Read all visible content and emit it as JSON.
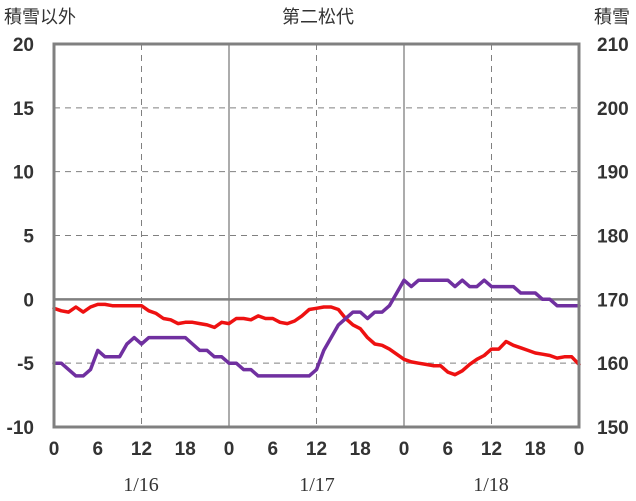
{
  "chart_data": {
    "type": "line",
    "title": "第二松代",
    "ylabel_left": "積雪以外",
    "ylabel_right": "積雪",
    "ylim_left": [
      -10,
      20
    ],
    "ylim_right": [
      150,
      210
    ],
    "yticks_left": [
      "20",
      "15",
      "10",
      "5",
      "0",
      "-5",
      "-10"
    ],
    "yticks_right": [
      "210",
      "200",
      "190",
      "180",
      "170",
      "160",
      "150"
    ],
    "xticks": [
      "0",
      "6",
      "12",
      "18",
      "0",
      "6",
      "12",
      "18",
      "0",
      "6",
      "12",
      "18",
      "0"
    ],
    "date_labels": [
      "1/16",
      "1/17",
      "1/18"
    ],
    "xlim_hours": [
      0,
      72
    ],
    "grid": true,
    "colors": {
      "red": "#ee1111",
      "purple": "#7030a0",
      "frame": "#808080",
      "grid": "#808080"
    },
    "series": [
      {
        "axis": "left",
        "color": "#ee1111",
        "x": [
          0,
          1,
          2,
          3,
          4,
          5,
          6,
          7,
          8,
          9,
          10,
          11,
          12,
          13,
          14,
          15,
          16,
          17,
          18,
          19,
          20,
          21,
          22,
          23,
          24,
          25,
          26,
          27,
          28,
          29,
          30,
          31,
          32,
          33,
          34,
          35,
          36,
          37,
          38,
          39,
          40,
          41,
          42,
          43,
          44,
          45,
          46,
          47,
          48,
          49,
          50,
          51,
          52,
          53,
          54,
          55,
          56,
          57,
          58,
          59,
          60,
          61,
          62,
          63,
          64,
          65,
          66,
          67,
          68,
          69,
          70,
          71,
          72
        ],
        "values": [
          -0.7,
          -0.9,
          -1.0,
          -0.6,
          -1.0,
          -0.6,
          -0.4,
          -0.4,
          -0.5,
          -0.5,
          -0.5,
          -0.5,
          -0.5,
          -0.9,
          -1.1,
          -1.5,
          -1.6,
          -1.9,
          -1.8,
          -1.8,
          -1.9,
          -2.0,
          -2.2,
          -1.8,
          -1.9,
          -1.5,
          -1.5,
          -1.6,
          -1.3,
          -1.5,
          -1.5,
          -1.8,
          -1.9,
          -1.7,
          -1.3,
          -0.8,
          -0.7,
          -0.6,
          -0.6,
          -0.8,
          -1.5,
          -2.0,
          -2.3,
          -3.0,
          -3.5,
          -3.6,
          -3.9,
          -4.3,
          -4.7,
          -4.9,
          -5.0,
          -5.1,
          -5.2,
          -5.2,
          -5.7,
          -5.9,
          -5.6,
          -5.1,
          -4.7,
          -4.4,
          -3.9,
          -3.9,
          -3.3,
          -3.6,
          -3.8,
          -4.0,
          -4.2,
          -4.3,
          -4.4,
          -4.6,
          -4.5,
          -4.5,
          -5.1
        ]
      },
      {
        "axis": "right",
        "color": "#7030a0",
        "x": [
          0,
          1,
          2,
          3,
          4,
          5,
          6,
          7,
          8,
          9,
          10,
          11,
          12,
          13,
          14,
          15,
          16,
          17,
          18,
          19,
          20,
          21,
          22,
          23,
          24,
          25,
          26,
          27,
          28,
          29,
          30,
          31,
          32,
          33,
          34,
          35,
          36,
          37,
          38,
          39,
          40,
          41,
          42,
          43,
          44,
          45,
          46,
          47,
          48,
          49,
          50,
          51,
          52,
          53,
          54,
          55,
          56,
          57,
          58,
          59,
          60,
          61,
          62,
          63,
          64,
          65,
          66,
          67,
          68,
          69,
          70,
          71,
          72
        ],
        "values": [
          160,
          160,
          159,
          158,
          158,
          159,
          162,
          161,
          161,
          161,
          163,
          164,
          163,
          164,
          164,
          164,
          164,
          164,
          164,
          163,
          162,
          162,
          161,
          161,
          160,
          160,
          159,
          159,
          158,
          158,
          158,
          158,
          158,
          158,
          158,
          158,
          159,
          162,
          164,
          166,
          167,
          168,
          168,
          167,
          168,
          168,
          169,
          171,
          173,
          172,
          173,
          173,
          173,
          173,
          173,
          172,
          173,
          172,
          172,
          173,
          172,
          172,
          172,
          172,
          171,
          171,
          171,
          170,
          170,
          169,
          169,
          169,
          169
        ]
      }
    ]
  }
}
